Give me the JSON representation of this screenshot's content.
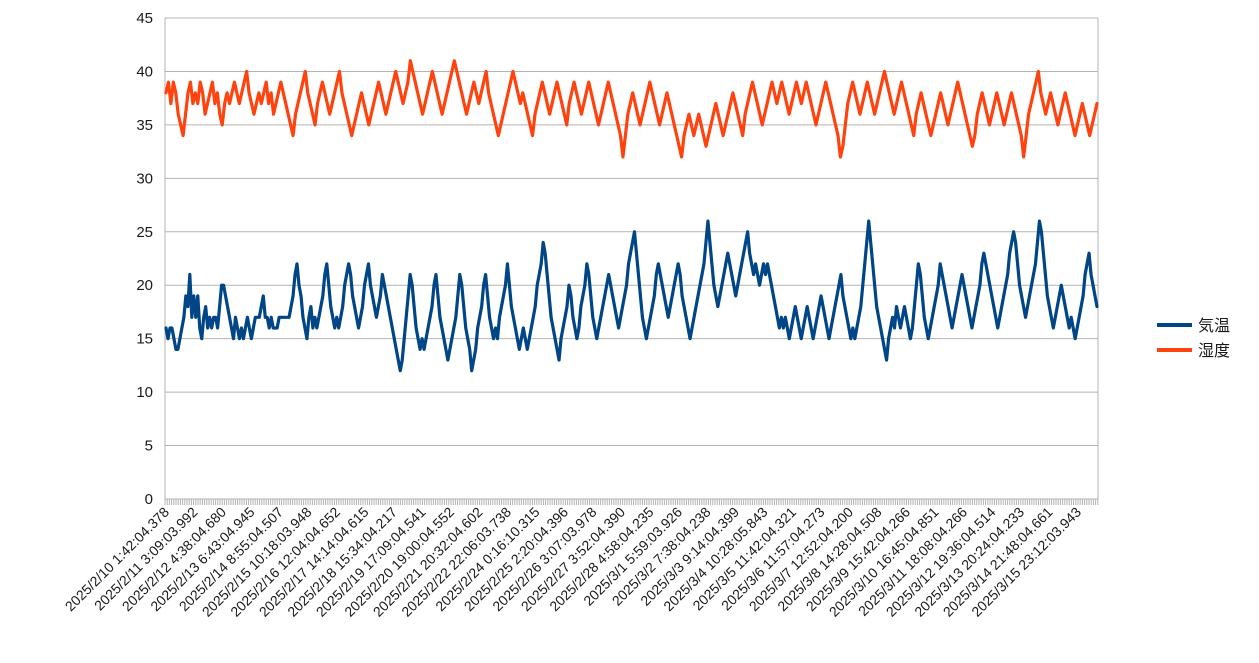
{
  "chart_data": {
    "type": "line",
    "title": "",
    "xlabel": "",
    "ylabel": "",
    "ylim": [
      0,
      45
    ],
    "yticks": [
      0,
      5,
      10,
      15,
      20,
      25,
      30,
      35,
      40,
      45
    ],
    "grid": true,
    "legend_position": "right",
    "x_tick_labels": [
      "2025/2/10 1:42:04.378",
      "2025/2/11 3:09:03.992",
      "2025/2/12 4:38:04.680",
      "2025/2/13 6:43:04.945",
      "2025/2/14 8:55:04.507",
      "2025/2/15 10:18:03.948",
      "2025/2/16 12:04:04.652",
      "2025/2/17 14:14:04.615",
      "2025/2/18 15:34:04.217",
      "2025/2/19 17:09:04.541",
      "2025/2/20 19:00:04.552",
      "2025/2/21 20:32:04.602",
      "2025/2/22 22:06:03.738",
      "2025/2/24 0:16:10.315",
      "2025/2/25 2:20:04.396",
      "2025/2/26 3:07:03.978",
      "2025/2/27 3:52:04.390",
      "2025/2/28 4:58:04.235",
      "2025/3/1 5:59:03.926",
      "2025/3/2 7:38:04.238",
      "2025/3/3 9:14:04.399",
      "2025/3/4 10:28:05.843",
      "2025/3/5 11:42:04.321",
      "2025/3/6 11:57:04.273",
      "2025/3/7 12:52:04.200",
      "2025/3/8 14:28:04.508",
      "2025/3/9 15:42:04.266",
      "2025/3/10 16:45:04.851",
      "2025/3/11 18:08:04.266",
      "2025/3/12 19:36:04.514",
      "2025/3/13 20:24:04.233",
      "2025/3/14 21:48:04.661",
      "2025/3/15 23:12:03.943"
    ],
    "series": [
      {
        "name": "気温",
        "color": "#004586",
        "values": [
          16,
          15,
          16,
          16,
          15,
          14,
          14,
          15,
          16,
          17,
          19,
          18,
          21,
          17,
          19,
          17,
          19,
          16,
          15,
          17,
          18,
          16,
          17,
          16,
          17,
          17,
          16,
          18,
          20,
          20,
          19,
          18,
          17,
          16,
          15,
          17,
          16,
          15,
          16,
          15,
          16,
          17,
          16,
          15,
          16,
          17,
          17,
          17,
          18,
          19,
          17,
          17,
          16,
          17,
          16,
          16,
          16,
          17,
          17,
          17,
          17,
          17,
          17,
          18,
          19,
          21,
          22,
          20,
          19,
          17,
          16,
          15,
          17,
          18,
          16,
          17,
          16,
          17,
          18,
          19,
          21,
          22,
          20,
          18,
          17,
          16,
          17,
          16,
          17,
          18,
          20,
          21,
          22,
          21,
          19,
          18,
          17,
          16,
          17,
          18,
          20,
          21,
          22,
          20,
          19,
          18,
          17,
          18,
          19,
          21,
          20,
          19,
          18,
          17,
          16,
          15,
          14,
          13,
          12,
          13,
          15,
          17,
          19,
          21,
          20,
          18,
          16,
          15,
          14,
          15,
          14,
          15,
          16,
          17,
          18,
          20,
          21,
          19,
          17,
          16,
          15,
          14,
          13,
          14,
          15,
          16,
          17,
          19,
          21,
          20,
          18,
          16,
          15,
          14,
          12,
          13,
          14,
          16,
          17,
          18,
          20,
          21,
          19,
          17,
          16,
          15,
          16,
          15,
          17,
          18,
          19,
          20,
          22,
          20,
          18,
          17,
          16,
          15,
          14,
          15,
          16,
          15,
          14,
          15,
          16,
          17,
          18,
          20,
          21,
          22,
          24,
          23,
          21,
          19,
          17,
          16,
          15,
          14,
          13,
          15,
          16,
          17,
          18,
          20,
          19,
          17,
          16,
          15,
          16,
          18,
          19,
          20,
          22,
          21,
          19,
          17,
          16,
          15,
          16,
          17,
          18,
          19,
          20,
          21,
          20,
          19,
          18,
          17,
          16,
          17,
          18,
          19,
          20,
          22,
          23,
          24,
          25,
          23,
          21,
          19,
          17,
          16,
          15,
          16,
          17,
          18,
          19,
          21,
          22,
          21,
          20,
          19,
          18,
          17,
          18,
          19,
          20,
          21,
          22,
          21,
          19,
          18,
          17,
          16,
          15,
          16,
          17,
          18,
          19,
          20,
          21,
          22,
          24,
          26,
          24,
          22,
          20,
          19,
          18,
          19,
          20,
          21,
          22,
          23,
          22,
          21,
          20,
          19,
          20,
          21,
          22,
          23,
          24,
          25,
          23,
          22,
          21,
          22,
          21,
          20,
          21,
          22,
          21,
          22,
          21,
          20,
          19,
          18,
          17,
          16,
          17,
          16,
          17,
          16,
          15,
          16,
          17,
          18,
          17,
          16,
          15,
          16,
          17,
          18,
          17,
          16,
          15,
          16,
          17,
          18,
          19,
          18,
          17,
          16,
          15,
          16,
          17,
          18,
          19,
          20,
          21,
          19,
          18,
          17,
          16,
          15,
          16,
          15,
          16,
          17,
          18,
          20,
          22,
          24,
          26,
          24,
          22,
          20,
          18,
          17,
          16,
          15,
          14,
          13,
          15,
          16,
          17,
          16,
          18,
          17,
          16,
          17,
          18,
          17,
          16,
          15,
          16,
          18,
          20,
          22,
          21,
          19,
          17,
          16,
          15,
          16,
          17,
          18,
          19,
          20,
          22,
          21,
          20,
          19,
          18,
          17,
          16,
          17,
          18,
          19,
          20,
          21,
          20,
          19,
          18,
          17,
          16,
          17,
          18,
          19,
          20,
          22,
          23,
          22,
          21,
          20,
          19,
          18,
          17,
          16,
          17,
          18,
          19,
          20,
          21,
          23,
          24,
          25,
          24,
          22,
          20,
          19,
          18,
          17,
          18,
          19,
          20,
          21,
          22,
          24,
          26,
          25,
          23,
          21,
          19,
          18,
          17,
          16,
          17,
          18,
          19,
          20,
          19,
          18,
          17,
          16,
          17,
          16,
          15,
          16,
          17,
          18,
          19,
          21,
          22,
          23,
          21,
          20,
          19,
          18
        ]
      },
      {
        "name": "湿度",
        "color": "#ff420e",
        "values": [
          38,
          39,
          37,
          39,
          38,
          36,
          35,
          34,
          36,
          38,
          39,
          37,
          38,
          37,
          39,
          38,
          36,
          37,
          38,
          39,
          37,
          38,
          36,
          35,
          37,
          38,
          37,
          38,
          39,
          38,
          37,
          38,
          39,
          40,
          38,
          37,
          36,
          37,
          38,
          37,
          38,
          39,
          37,
          38,
          36,
          37,
          38,
          39,
          38,
          37,
          36,
          35,
          34,
          36,
          37,
          38,
          39,
          40,
          38,
          37,
          36,
          35,
          37,
          38,
          39,
          38,
          37,
          36,
          37,
          38,
          39,
          40,
          38,
          37,
          36,
          35,
          34,
          35,
          36,
          37,
          38,
          37,
          36,
          35,
          36,
          37,
          38,
          39,
          38,
          37,
          36,
          37,
          38,
          39,
          40,
          39,
          38,
          37,
          38,
          39,
          41,
          40,
          39,
          38,
          37,
          36,
          37,
          38,
          39,
          40,
          39,
          38,
          37,
          36,
          37,
          38,
          39,
          40,
          41,
          40,
          39,
          38,
          37,
          36,
          37,
          38,
          39,
          38,
          37,
          38,
          39,
          40,
          38,
          37,
          36,
          35,
          34,
          35,
          36,
          37,
          38,
          39,
          40,
          39,
          38,
          37,
          38,
          37,
          36,
          35,
          34,
          36,
          37,
          38,
          39,
          38,
          37,
          36,
          37,
          38,
          39,
          38,
          37,
          36,
          35,
          37,
          38,
          39,
          38,
          37,
          36,
          37,
          38,
          39,
          38,
          37,
          36,
          35,
          36,
          37,
          38,
          39,
          38,
          37,
          36,
          35,
          34,
          32,
          34,
          36,
          37,
          38,
          37,
          36,
          35,
          36,
          37,
          38,
          39,
          38,
          37,
          36,
          35,
          36,
          37,
          38,
          37,
          36,
          35,
          34,
          33,
          32,
          34,
          35,
          36,
          35,
          34,
          35,
          36,
          35,
          34,
          33,
          34,
          35,
          36,
          37,
          36,
          35,
          34,
          35,
          36,
          37,
          38,
          37,
          36,
          35,
          34,
          36,
          37,
          38,
          39,
          38,
          37,
          36,
          35,
          36,
          37,
          38,
          39,
          38,
          37,
          38,
          39,
          38,
          37,
          36,
          37,
          38,
          39,
          38,
          37,
          38,
          39,
          38,
          37,
          36,
          35,
          36,
          37,
          38,
          39,
          38,
          37,
          36,
          35,
          34,
          32,
          33,
          35,
          37,
          38,
          39,
          38,
          37,
          36,
          37,
          38,
          39,
          38,
          37,
          36,
          37,
          38,
          39,
          40,
          39,
          38,
          37,
          36,
          37,
          38,
          39,
          38,
          37,
          36,
          35,
          34,
          36,
          37,
          38,
          37,
          36,
          35,
          34,
          35,
          36,
          37,
          38,
          37,
          36,
          35,
          36,
          37,
          38,
          39,
          38,
          37,
          36,
          35,
          34,
          33,
          34,
          36,
          37,
          38,
          37,
          36,
          35,
          36,
          37,
          38,
          37,
          36,
          35,
          36,
          37,
          38,
          37,
          36,
          35,
          34,
          32,
          34,
          36,
          37,
          38,
          39,
          40,
          38,
          37,
          36,
          37,
          38,
          37,
          36,
          35,
          36,
          37,
          38,
          37,
          36,
          35,
          34,
          35,
          36,
          37,
          36,
          35,
          34,
          35,
          36,
          37
        ]
      }
    ]
  }
}
